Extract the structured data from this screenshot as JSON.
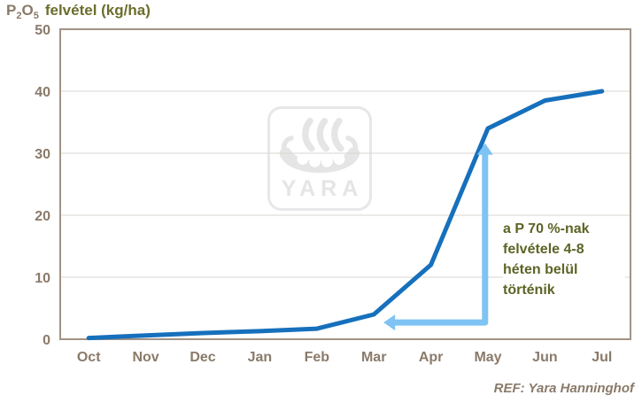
{
  "title": {
    "p": "P",
    "s1": "2",
    "o": "O",
    "s2": "5",
    "rest": "felvétel (kg/ha)"
  },
  "chart_data": {
    "type": "line",
    "title": "P2O5 felvétel (kg/ha)",
    "xlabel": "",
    "ylabel": "P2O5 felvétel (kg/ha)",
    "categories": [
      "Oct",
      "Nov",
      "Dec",
      "Jan",
      "Feb",
      "Mar",
      "Apr",
      "May",
      "Jun",
      "Jul"
    ],
    "values": [
      0.2,
      0.6,
      1.0,
      1.3,
      1.7,
      4,
      12,
      34,
      38.5,
      40
    ],
    "ylim": [
      0,
      50
    ],
    "yticks": [
      0,
      10,
      20,
      30,
      40,
      50
    ],
    "grid": true,
    "legend": "none",
    "annotation": {
      "text": "a P 70 %-nak\nfelvétele 4-8\nhéten belül\ntörténik",
      "arrow": {
        "corner_month": 6.95,
        "corner_value": 2.7,
        "up_to_value": 31.6,
        "left_to_month": 5.17
      }
    }
  },
  "watermark": {
    "brand": "YARA"
  },
  "footer": {
    "ref": "REF: Yara Hanninghof"
  },
  "colors": {
    "curve": "#1670bc",
    "arrow": "#7ec3f4",
    "axis": "#a29384",
    "grid": "#d9d5d0",
    "tick_label": "#8a7a6a",
    "title_formula": "#8a7a6a",
    "title_rest": "#6b6e2b",
    "annotation": "#5e6426",
    "watermark": "#e5e5e5",
    "background": "#ffffff"
  }
}
